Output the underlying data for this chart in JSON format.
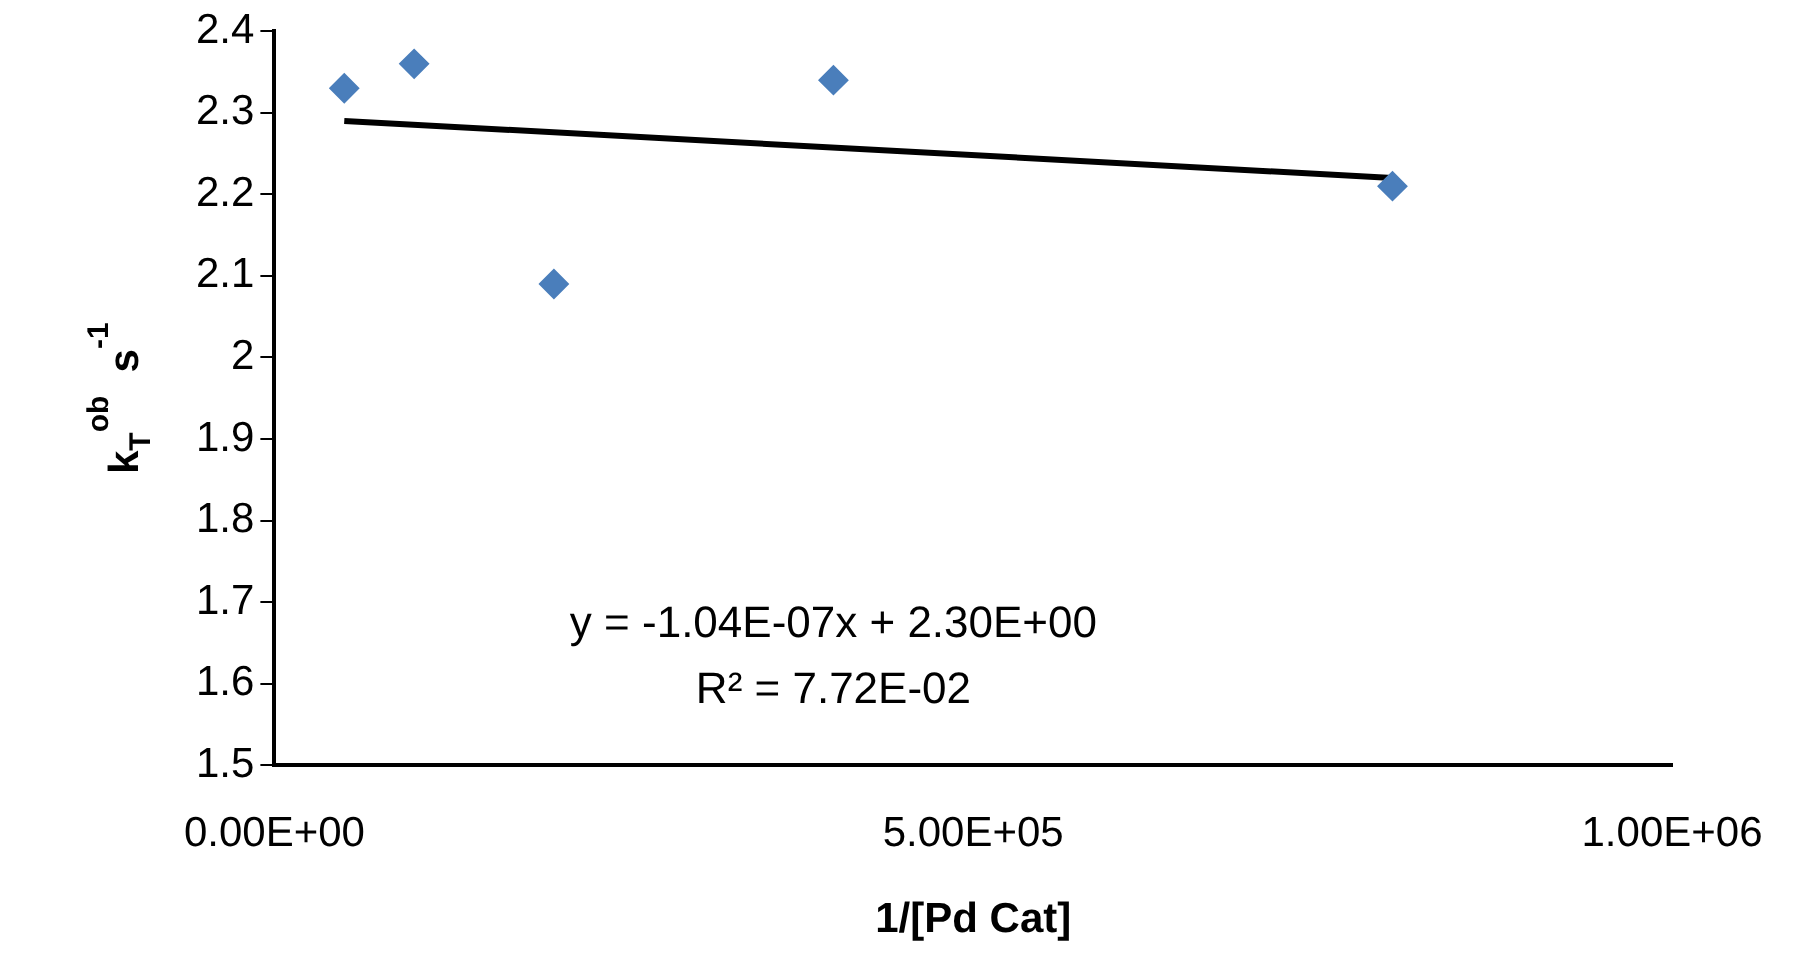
{
  "chart_data": {
    "type": "scatter",
    "xlabel": "1/[Pd Cat]",
    "ylabel": "k$_{T}$$^{ob}$  s$^{-1}$",
    "x": [
      50000,
      100000,
      200000,
      400000,
      800000
    ],
    "series": [
      {
        "type": "scatter",
        "color": "#4a7ebb",
        "values": [
          2.33,
          2.36,
          2.09,
          2.34,
          2.21
        ],
        "marker": "diamond"
      },
      {
        "type": "line",
        "color": "#000000",
        "x": [
          50000,
          800000
        ],
        "values": [
          2.29,
          2.22
        ],
        "marker": "none"
      }
    ],
    "xlim": [
      0,
      1000000
    ],
    "xticks": [
      {
        "value": 0,
        "label": "0.00E+00"
      },
      {
        "value": 500000,
        "label": "5.00E+05"
      },
      {
        "value": 1000000,
        "label": "1.00E+06"
      }
    ],
    "ylim": [
      1.5,
      2.4
    ],
    "yticks": [
      1.5,
      1.6,
      1.7,
      1.8,
      1.9,
      2,
      2.1,
      2.2,
      2.3,
      2.4
    ],
    "annotations": [
      "y = -1.04E-07x + 2.30E+00",
      "R² = 7.72E-02"
    ],
    "grid": false,
    "legend": false
  }
}
